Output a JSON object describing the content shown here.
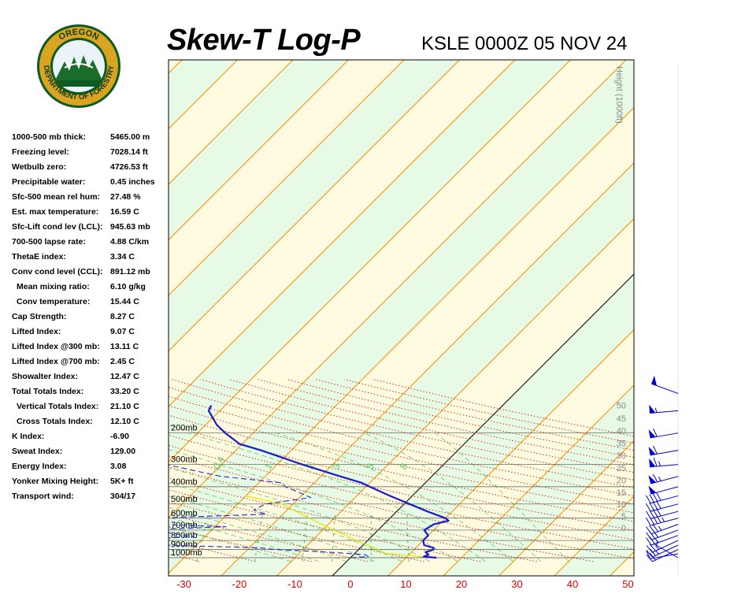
{
  "logo": {
    "top_text": "OREGON",
    "bottom_text": "DEPARTMENT OF FORESTRY"
  },
  "title": "Skew-T Log-P",
  "station": "KSLE 0000Z 05 NOV 24",
  "stats": [
    {
      "label": "1000-500 mb thick:",
      "value": "5465.00 m",
      "indent": false
    },
    {
      "label": "Freezing level:",
      "value": "7028.14 ft",
      "indent": false
    },
    {
      "label": "Wetbulb zero:",
      "value": "4726.53 ft",
      "indent": false
    },
    {
      "label": "Precipitable water:",
      "value": "0.45 inches",
      "indent": false
    },
    {
      "label": "Sfc-500 mean rel hum:",
      "value": "27.48 %",
      "indent": false
    },
    {
      "label": "Est. max temperature:",
      "value": "16.59 C",
      "indent": false
    },
    {
      "label": "Sfc-Lift cond lev (LCL):",
      "value": "945.63 mb",
      "indent": false
    },
    {
      "label": "700-500 lapse rate:",
      "value": "4.88 C/km",
      "indent": false
    },
    {
      "label": "ThetaE index:",
      "value": "3.34 C",
      "indent": false
    },
    {
      "label": "Conv cond level (CCL):",
      "value": "891.12 mb",
      "indent": false
    },
    {
      "label": "Mean mixing ratio:",
      "value": "6.10 g/kg",
      "indent": true
    },
    {
      "label": "Conv temperature:",
      "value": "15.44 C",
      "indent": true
    },
    {
      "label": "Cap Strength:",
      "value": "8.27 C",
      "indent": false
    },
    {
      "label": "Lifted Index:",
      "value": "9.07 C",
      "indent": false
    },
    {
      "label": "Lifted Index @300 mb:",
      "value": "13.11 C",
      "indent": false
    },
    {
      "label": "Lifted Index @700 mb:",
      "value": "2.45 C",
      "indent": false
    },
    {
      "label": "Showalter Index:",
      "value": "12.47 C",
      "indent": false
    },
    {
      "label": "Total Totals Index:",
      "value": "33.20 C",
      "indent": false
    },
    {
      "label": "Vertical Totals Index:",
      "value": "21.10 C",
      "indent": true
    },
    {
      "label": "Cross Totals Index:",
      "value": "12.10 C",
      "indent": true
    },
    {
      "label": "K Index:",
      "value": "-6.90",
      "indent": false
    },
    {
      "label": "Sweat Index:",
      "value": "129.00",
      "indent": false
    },
    {
      "label": "Energy Index:",
      "value": "3.08",
      "indent": false
    },
    {
      "label": "Yonker Mixing Height:",
      "value": "5K+ ft",
      "indent": false
    },
    {
      "label": "Transport wind:",
      "value": "304/17",
      "indent": false
    }
  ],
  "colors": {
    "temperature": "#1a1acc",
    "dewpoint": "#2a2acc",
    "parcel": "#e6e600",
    "isotherm": "#ff8c00",
    "dry_adiabat": "#cc2200",
    "moist_adiabat": "#3cb43c",
    "band_green": "#e6fae6",
    "band_yellow": "#fffbe0",
    "wind_barb": "#0000cc"
  },
  "chart_data": {
    "type": "skew-t log-p",
    "xlabel": "",
    "ylabel": "",
    "x_ticks": [
      "-30",
      "-20",
      "-10",
      "0",
      "10",
      "20",
      "30",
      "40",
      "50"
    ],
    "pressure_levels": [
      {
        "p": 200,
        "label": "200mb"
      },
      {
        "p": 300,
        "label": "300mb"
      },
      {
        "p": 400,
        "label": "400mb"
      },
      {
        "p": 500,
        "label": "500mb"
      },
      {
        "p": 600,
        "label": "600mb"
      },
      {
        "p": 700,
        "label": "700mb"
      },
      {
        "p": 800,
        "label": "800mb"
      },
      {
        "p": 900,
        "label": "900mb"
      },
      {
        "p": 1000,
        "label": "1000mb"
      }
    ],
    "height_axis": {
      "title": "Height (1000ft)",
      "ticks": [
        {
          "label": "50",
          "p": 140
        },
        {
          "label": "45",
          "p": 165
        },
        {
          "label": "40",
          "p": 194
        },
        {
          "label": "35",
          "p": 228
        },
        {
          "label": "30",
          "p": 267
        },
        {
          "label": "25",
          "p": 314
        },
        {
          "label": "20",
          "p": 368
        },
        {
          "label": "15",
          "p": 430
        },
        {
          "label": "10",
          "p": 501
        },
        {
          "label": "5",
          "p": 584
        },
        {
          "label": "0",
          "p": 680
        }
      ]
    },
    "mixing_ratio_labels": [
      "0.4",
      "1",
      "2",
      "3",
      "5",
      "8"
    ],
    "temperature": [
      {
        "p": 1000,
        "t": 15.5
      },
      {
        "p": 985,
        "t": 13.0
      },
      {
        "p": 960,
        "t": 13.5
      },
      {
        "p": 930,
        "t": 12.5
      },
      {
        "p": 900,
        "t": 13.5
      },
      {
        "p": 880,
        "t": 13.2
      },
      {
        "p": 850,
        "t": 11.0
      },
      {
        "p": 800,
        "t": 10.0
      },
      {
        "p": 750,
        "t": 10.0
      },
      {
        "p": 700,
        "t": 8.3
      },
      {
        "p": 650,
        "t": 9.0
      },
      {
        "p": 620,
        "t": 11.0
      },
      {
        "p": 600,
        "t": 10.0
      },
      {
        "p": 550,
        "t": 5.5
      },
      {
        "p": 500,
        "t": 1.0
      },
      {
        "p": 450,
        "t": -4.0
      },
      {
        "p": 400,
        "t": -9.3
      },
      {
        "p": 380,
        "t": -11.5
      },
      {
        "p": 350,
        "t": -16.5
      },
      {
        "p": 300,
        "t": -25.5
      },
      {
        "p": 250,
        "t": -35.5
      },
      {
        "p": 230,
        "t": -40.5
      },
      {
        "p": 200,
        "t": -45.0
      },
      {
        "p": 180,
        "t": -48.0
      },
      {
        "p": 150,
        "t": -52.0
      },
      {
        "p": 140,
        "t": -52.5
      }
    ],
    "dewpoint": [
      {
        "p": 1000,
        "t": 0.0
      },
      {
        "p": 985,
        "t": 3.0
      },
      {
        "p": 960,
        "t": 2.0
      },
      {
        "p": 930,
        "t": -5.0
      },
      {
        "p": 900,
        "t": -15.0
      },
      {
        "p": 880,
        "t": -18.0
      },
      {
        "p": 850,
        "t": -36.0
      },
      {
        "p": 800,
        "t": -43.0
      },
      {
        "p": 760,
        "t": -32.0
      },
      {
        "p": 720,
        "t": -38.0
      },
      {
        "p": 700,
        "t": -42.0
      },
      {
        "p": 670,
        "t": -28.0
      },
      {
        "p": 650,
        "t": -40.0
      },
      {
        "p": 630,
        "t": -45.0
      },
      {
        "p": 600,
        "t": -43.0
      },
      {
        "p": 570,
        "t": -23.0
      },
      {
        "p": 540,
        "t": -26.0
      },
      {
        "p": 500,
        "t": -25.0
      },
      {
        "p": 460,
        "t": -18.0
      },
      {
        "p": 440,
        "t": -20.0
      },
      {
        "p": 400,
        "t": -24.5
      },
      {
        "p": 380,
        "t": -26.0
      },
      {
        "p": 350,
        "t": -38.0
      },
      {
        "p": 300,
        "t": -50.0
      },
      {
        "p": 250,
        "t": -62.0
      },
      {
        "p": 200,
        "t": -70.0
      },
      {
        "p": 180,
        "t": -72.0
      },
      {
        "p": 150,
        "t": -76.0
      },
      {
        "p": 130,
        "t": -78.0
      }
    ],
    "parcel": [
      {
        "p": 990,
        "t": 13.0
      },
      {
        "p": 945,
        "t": 5.5
      },
      {
        "p": 900,
        "t": 3.5
      },
      {
        "p": 800,
        "t": -2.0
      },
      {
        "p": 700,
        "t": -8.0
      },
      {
        "p": 600,
        "t": -14.5
      },
      {
        "p": 500,
        "t": -22.0
      },
      {
        "p": 450,
        "t": -30.0
      }
    ],
    "wind_barbs": [
      {
        "p": 1000,
        "direction": 300,
        "speed_kt": 5
      },
      {
        "p": 950,
        "direction": 260,
        "speed_kt": 10
      },
      {
        "p": 900,
        "direction": 245,
        "speed_kt": 20
      },
      {
        "p": 850,
        "direction": 245,
        "speed_kt": 25
      },
      {
        "p": 800,
        "direction": 245,
        "speed_kt": 25
      },
      {
        "p": 750,
        "direction": 250,
        "speed_kt": 25
      },
      {
        "p": 700,
        "direction": 250,
        "speed_kt": 30
      },
      {
        "p": 650,
        "direction": 250,
        "speed_kt": 35
      },
      {
        "p": 600,
        "direction": 255,
        "speed_kt": 45
      },
      {
        "p": 550,
        "direction": 255,
        "speed_kt": 40
      },
      {
        "p": 500,
        "direction": 255,
        "speed_kt": 40
      },
      {
        "p": 450,
        "direction": 255,
        "speed_kt": 40
      },
      {
        "p": 400,
        "direction": 255,
        "speed_kt": 50
      },
      {
        "p": 350,
        "direction": 255,
        "speed_kt": 65
      },
      {
        "p": 300,
        "direction": 265,
        "speed_kt": 65
      },
      {
        "p": 250,
        "direction": 260,
        "speed_kt": 60
      },
      {
        "p": 200,
        "direction": 260,
        "speed_kt": 60
      },
      {
        "p": 150,
        "direction": 265,
        "speed_kt": 55
      },
      {
        "p": 120,
        "direction": 290,
        "speed_kt": 50
      }
    ]
  }
}
